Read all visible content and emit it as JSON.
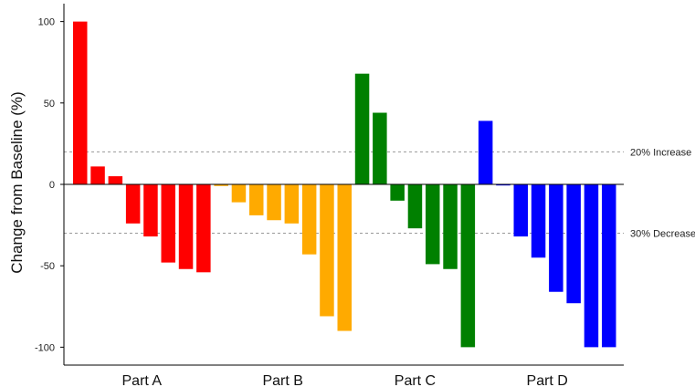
{
  "chart_data": {
    "type": "bar",
    "ylabel": "Change from Baseline (%)",
    "xlabel": "",
    "ylim": [
      -111,
      111
    ],
    "yticks": [
      100,
      50,
      0,
      -50,
      -100
    ],
    "groups": [
      {
        "name": "Part A",
        "color": "#ff0000",
        "values": [
          100,
          11,
          5,
          -24,
          -32,
          -48,
          -52,
          -54
        ]
      },
      {
        "name": "Part B",
        "color": "#ffaa00",
        "values": [
          -1,
          -11,
          -19,
          -22,
          -24,
          -43,
          -81,
          -90
        ]
      },
      {
        "name": "Part C",
        "color": "#008000",
        "values": [
          68,
          44,
          -10,
          -27,
          -49,
          -52,
          -100
        ]
      },
      {
        "name": "Part D",
        "color": "#0000ff",
        "values": [
          39,
          0,
          -32,
          -45,
          -66,
          -73,
          -100,
          -100
        ]
      }
    ],
    "reference_lines": [
      {
        "value": 20,
        "label": "20% Increase"
      },
      {
        "value": -30,
        "label": "30% Decrease"
      }
    ]
  }
}
